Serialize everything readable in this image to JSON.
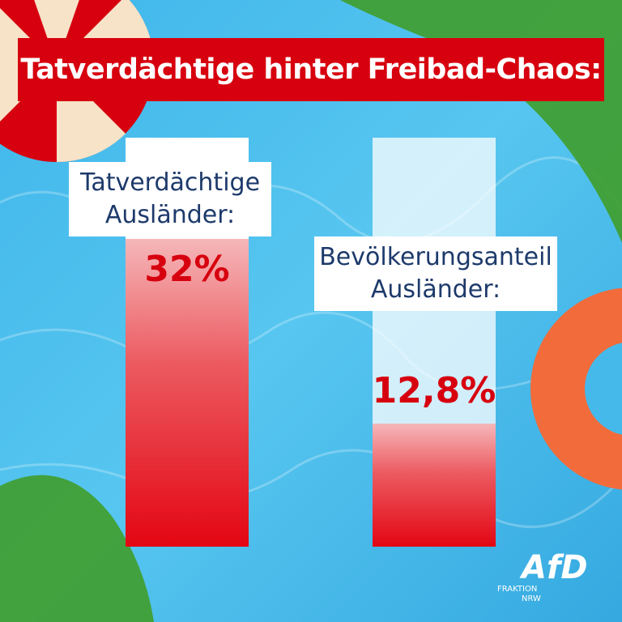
{
  "chart_data": {
    "type": "bar",
    "title": "Tatverdächtige hinter Freibad-Chaos:",
    "categories": [
      "Tatverdächtige Ausländer:",
      "Bevölkerungsanteil Ausländer:"
    ],
    "values": [
      32,
      12.8
    ],
    "value_labels": [
      "32%",
      "12,8%"
    ],
    "color": "#e30613"
  },
  "logo": {
    "name": "AfD",
    "line1": "FRAKTION",
    "line2": "NRW"
  }
}
